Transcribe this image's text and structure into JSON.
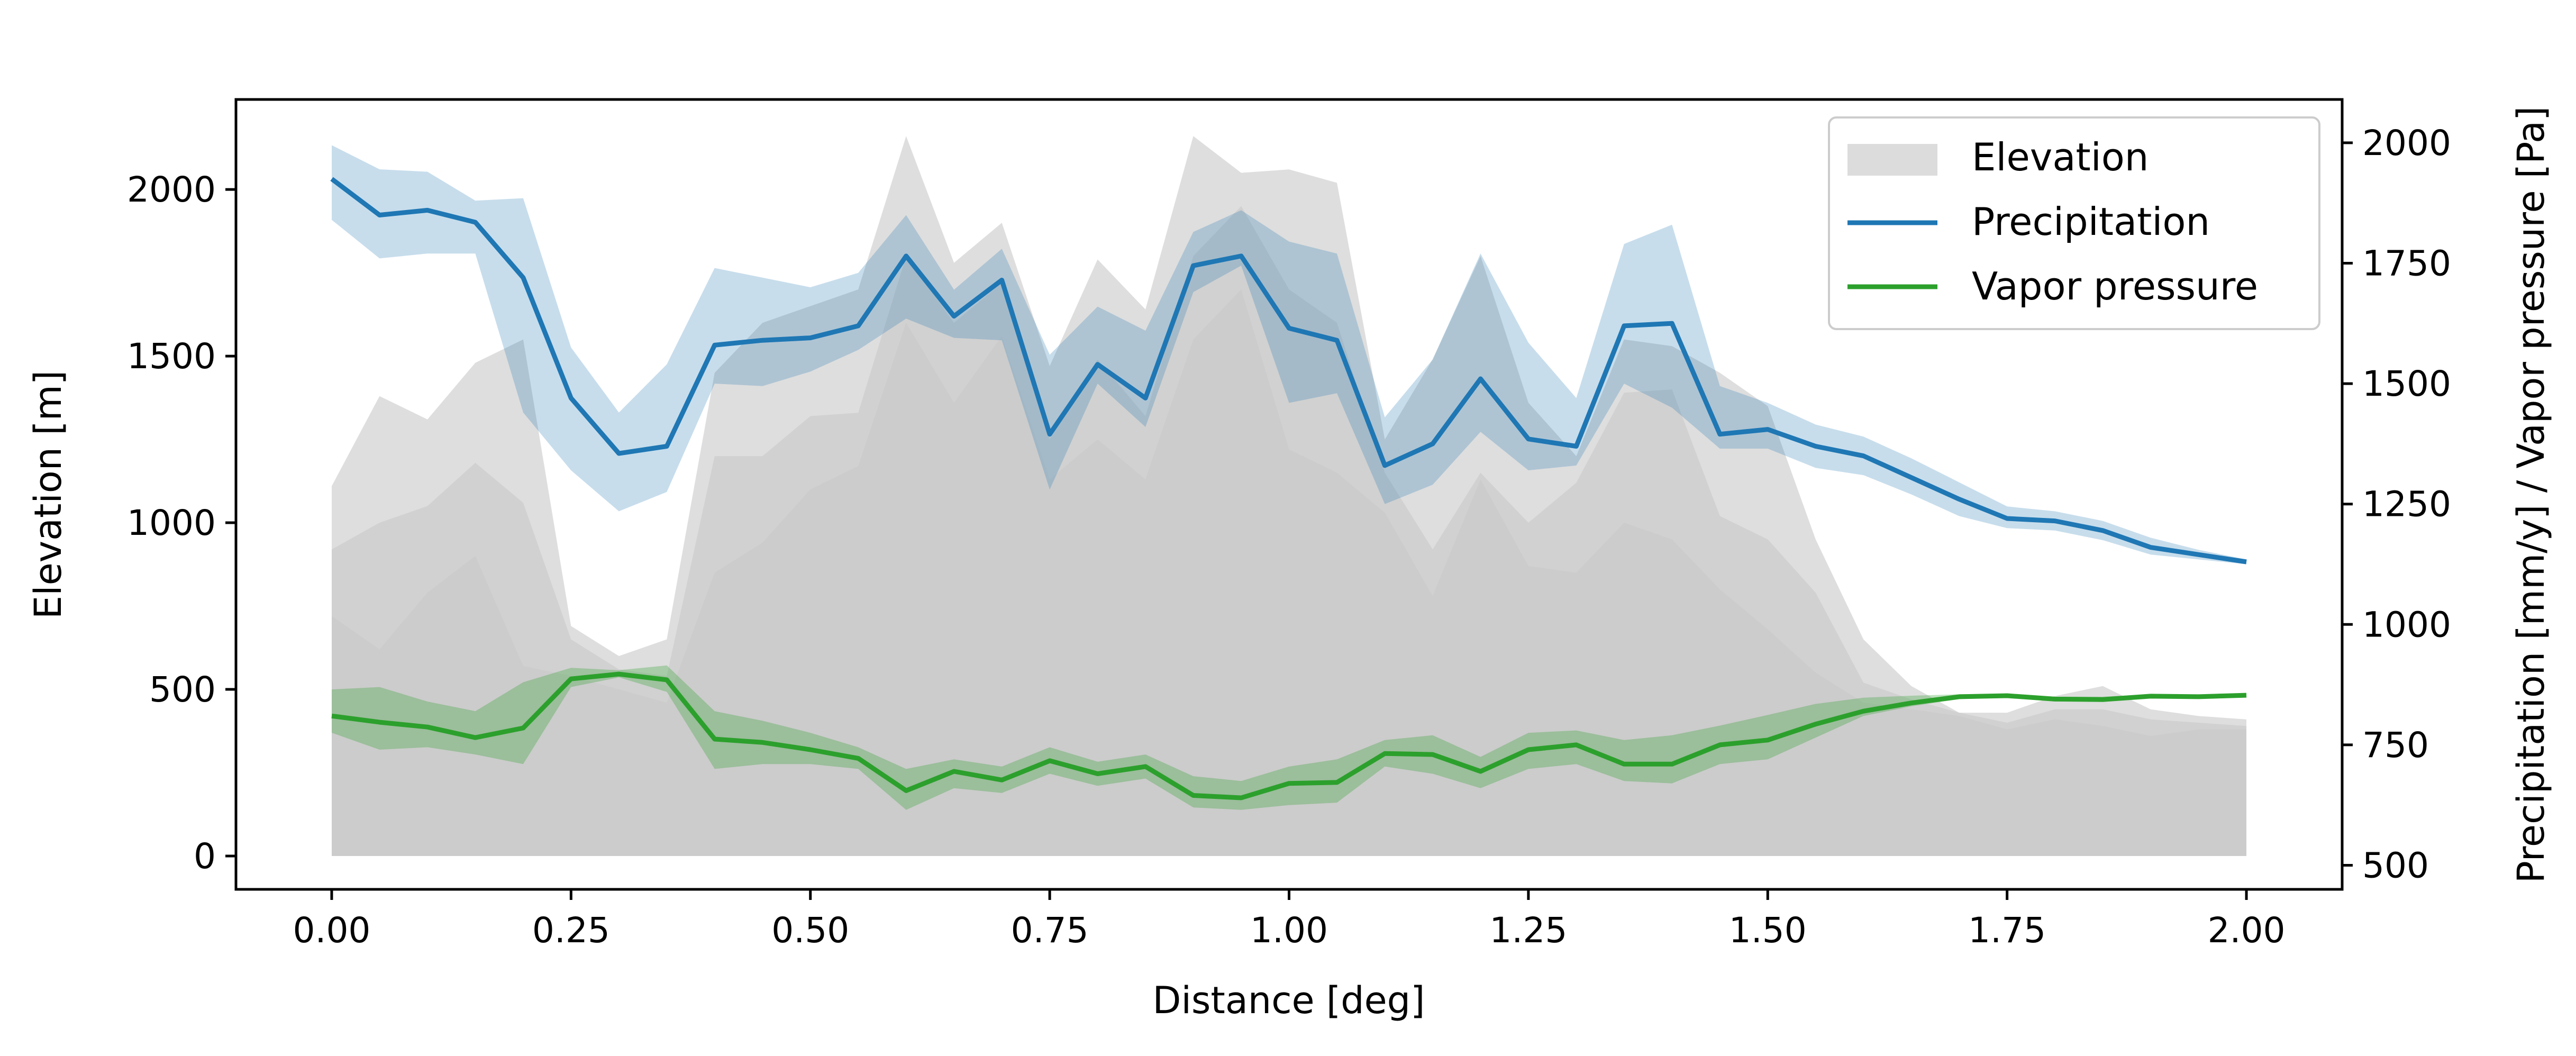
{
  "chart_data": {
    "type": "area",
    "xlabel": "Distance [deg]",
    "ylabel_left": "Elevation [m]",
    "ylabel_right": "Precipitation [mm/y] / Vapor pressure [Pa]",
    "xlim": [
      -0.1,
      2.1
    ],
    "ylim_left": [
      -100,
      2270
    ],
    "ylim_right": [
      450,
      2090
    ],
    "xticks": [
      "0.00",
      "0.25",
      "0.50",
      "0.75",
      "1.00",
      "1.25",
      "1.50",
      "1.75",
      "2.00"
    ],
    "yticks_left": [
      "0",
      "500",
      "1000",
      "1500",
      "2000"
    ],
    "yticks_right": [
      "500",
      "750",
      "1000",
      "1250",
      "1500",
      "1750",
      "2000"
    ],
    "grid": false,
    "legend_position": "top-right",
    "colors": {
      "elevation": "#c8c8c8",
      "precipitation": "#1f77b4",
      "vapor": "#2ca02c"
    },
    "x": [
      0.0,
      0.05,
      0.1,
      0.15,
      0.2,
      0.25,
      0.3,
      0.35,
      0.4,
      0.45,
      0.5,
      0.55,
      0.6,
      0.65,
      0.7,
      0.75,
      0.8,
      0.85,
      0.9,
      0.95,
      1.0,
      1.05,
      1.1,
      1.15,
      1.2,
      1.25,
      1.3,
      1.35,
      1.4,
      1.45,
      1.5,
      1.55,
      1.6,
      1.65,
      1.7,
      1.75,
      1.8,
      1.85,
      1.9,
      1.95,
      2.0
    ],
    "series": [
      {
        "name": "Elevation",
        "kind": "band",
        "axis": "left",
        "mean": [
          720,
          620,
          790,
          900,
          570,
          540,
          500,
          460,
          850,
          940,
          1100,
          1170,
          1600,
          1360,
          1560,
          1130,
          1250,
          1130,
          1550,
          1700,
          1220,
          1150,
          1030,
          780,
          1130,
          870,
          850,
          1000,
          950,
          800,
          680,
          550,
          460,
          440,
          420,
          380,
          410,
          390,
          360,
          380,
          380
        ],
        "inner_upper": [
          920,
          1000,
          1050,
          1180,
          1060,
          650,
          560,
          540,
          1200,
          1200,
          1320,
          1330,
          1800,
          1600,
          1720,
          1250,
          1490,
          1320,
          1800,
          1950,
          1700,
          1600,
          1150,
          920,
          1150,
          1000,
          1120,
          1390,
          1400,
          1020,
          950,
          790,
          520,
          470,
          430,
          400,
          440,
          440,
          410,
          400,
          390
        ],
        "outer_upper": [
          1110,
          1380,
          1310,
          1480,
          1550,
          690,
          600,
          650,
          1450,
          1600,
          1650,
          1700,
          2160,
          1780,
          1900,
          1470,
          1790,
          1640,
          2160,
          2050,
          2060,
          2020,
          1250,
          1490,
          1800,
          1360,
          1200,
          1550,
          1530,
          1450,
          1350,
          950,
          650,
          510,
          430,
          430,
          480,
          510,
          440,
          420,
          410
        ]
      },
      {
        "name": "Precipitation",
        "kind": "line_band",
        "axis": "right",
        "values": [
          1925,
          1850,
          1860,
          1835,
          1720,
          1470,
          1355,
          1370,
          1580,
          1590,
          1595,
          1620,
          1765,
          1640,
          1715,
          1395,
          1540,
          1470,
          1745,
          1765,
          1615,
          1590,
          1330,
          1375,
          1510,
          1385,
          1370,
          1620,
          1625,
          1395,
          1405,
          1370,
          1350,
          1305,
          1260,
          1220,
          1215,
          1195,
          1160,
          1145,
          1130
        ],
        "lower": [
          1840,
          1760,
          1770,
          1770,
          1440,
          1320,
          1235,
          1275,
          1500,
          1495,
          1525,
          1570,
          1635,
          1595,
          1590,
          1280,
          1500,
          1410,
          1690,
          1745,
          1460,
          1480,
          1250,
          1290,
          1400,
          1320,
          1330,
          1500,
          1450,
          1365,
          1365,
          1325,
          1310,
          1270,
          1225,
          1200,
          1195,
          1175,
          1145,
          1135,
          1125
        ],
        "upper": [
          1995,
          1945,
          1940,
          1880,
          1885,
          1575,
          1440,
          1540,
          1740,
          1720,
          1700,
          1730,
          1850,
          1695,
          1780,
          1560,
          1660,
          1610,
          1815,
          1860,
          1795,
          1770,
          1430,
          1550,
          1770,
          1585,
          1470,
          1790,
          1830,
          1495,
          1460,
          1415,
          1390,
          1345,
          1295,
          1245,
          1235,
          1215,
          1180,
          1155,
          1135
        ]
      },
      {
        "name": "Vapor pressure",
        "kind": "line_band",
        "axis": "right",
        "values": [
          810,
          797,
          787,
          765,
          785,
          887,
          897,
          885,
          762,
          755,
          740,
          722,
          655,
          695,
          677,
          717,
          690,
          705,
          645,
          640,
          670,
          672,
          732,
          730,
          695,
          740,
          750,
          710,
          710,
          750,
          760,
          793,
          820,
          837,
          850,
          852,
          845,
          844,
          851,
          850,
          853
        ],
        "lower": [
          775,
          740,
          745,
          730,
          710,
          870,
          890,
          860,
          700,
          710,
          710,
          700,
          615,
          660,
          650,
          690,
          665,
          680,
          620,
          615,
          625,
          630,
          705,
          690,
          660,
          700,
          710,
          675,
          670,
          710,
          720,
          765,
          810,
          830,
          845,
          848,
          840,
          840,
          848,
          848,
          850
        ],
        "upper": [
          865,
          870,
          840,
          820,
          880,
          910,
          905,
          915,
          820,
          800,
          775,
          745,
          700,
          720,
          705,
          745,
          715,
          730,
          685,
          675,
          705,
          720,
          760,
          770,
          725,
          775,
          780,
          760,
          770,
          790,
          812,
          835,
          848,
          852,
          855,
          856,
          850,
          850,
          855,
          853,
          856
        ]
      }
    ]
  }
}
